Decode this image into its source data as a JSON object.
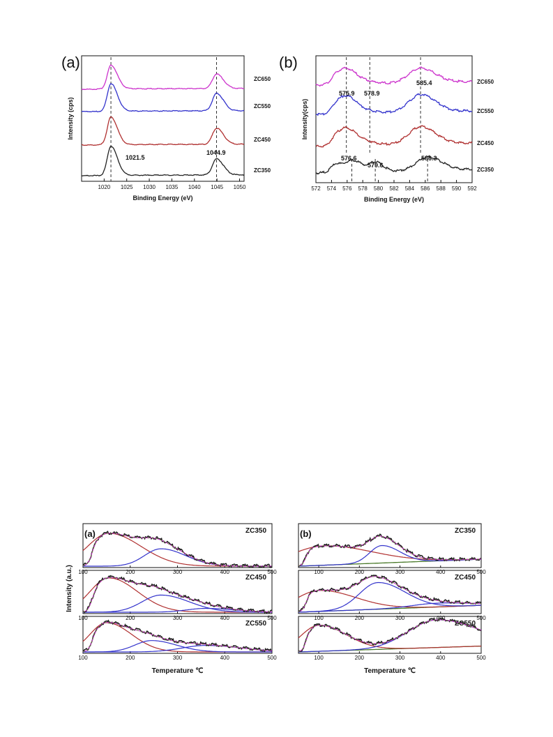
{
  "chart_data": [
    {
      "id": "xps_zn",
      "type": "line",
      "panel_label": "(a)",
      "xlabel": "Binding Energy (eV)",
      "ylabel": "Intensity (cps)",
      "xlim": [
        1015,
        1051
      ],
      "xticks": [
        1020,
        1025,
        1030,
        1035,
        1040,
        1045,
        1050
      ],
      "peak_lines": [
        1021.5,
        1044.9
      ],
      "series": [
        {
          "name": "ZC650",
          "color": "#cc33cc",
          "peaks": [
            {
              "x": 1021.5,
              "h": 0.9,
              "w": 0.8
            },
            {
              "x": 1044.9,
              "h": 0.55,
              "w": 0.9
            }
          ]
        },
        {
          "name": "ZC550",
          "color": "#3333cc",
          "peaks": [
            {
              "x": 1021.5,
              "h": 0.95,
              "w": 0.8
            },
            {
              "x": 1044.9,
              "h": 0.6,
              "w": 0.9
            }
          ]
        },
        {
          "name": "ZC450",
          "color": "#b03030",
          "peaks": [
            {
              "x": 1021.5,
              "h": 0.95,
              "w": 0.8
            },
            {
              "x": 1044.9,
              "h": 0.55,
              "w": 0.9
            }
          ]
        },
        {
          "name": "ZC350",
          "color": "#222222",
          "peaks": [
            {
              "x": 1021.5,
              "h": 1.0,
              "w": 0.8
            },
            {
              "x": 1044.9,
              "h": 0.55,
              "w": 0.9
            }
          ]
        }
      ],
      "annotations": [
        "1021.5",
        "1044.9"
      ]
    },
    {
      "id": "xps_mn",
      "type": "line",
      "panel_label": "(b)",
      "xlabel": "Binding Energy (eV)",
      "ylabel": "Intensity(cps)",
      "xlim": [
        572,
        592
      ],
      "xticks": [
        572,
        574,
        576,
        578,
        580,
        582,
        584,
        586,
        588,
        590,
        592
      ],
      "peak_lines": [
        575.9,
        578.9,
        585.4,
        576.6,
        579.6,
        586.3
      ],
      "series": [
        {
          "name": "ZC650",
          "color": "#cc33cc"
        },
        {
          "name": "ZC550",
          "color": "#3333cc"
        },
        {
          "name": "ZC450",
          "color": "#b03030"
        },
        {
          "name": "ZC350",
          "color": "#222222"
        }
      ],
      "annotations": [
        "575.9",
        "578.9",
        "585.4",
        "576.6",
        "579.6",
        "586.3"
      ]
    },
    {
      "id": "tpd_a",
      "type": "line",
      "panel_label": "(a)",
      "xlabel": "Temperature ℃",
      "ylabel": "Intensity (a.u.)",
      "xlim": [
        100,
        500
      ],
      "xticks": [
        100,
        200,
        300,
        400,
        500
      ],
      "subplots": [
        {
          "name": "ZC350",
          "fits": [
            {
              "c": 155,
              "h": 0.85,
              "w": 45
            },
            {
              "c": 265,
              "h": 0.45,
              "w": 35
            }
          ]
        },
        {
          "name": "ZC450",
          "fits": [
            {
              "c": 155,
              "h": 0.9,
              "w": 40
            },
            {
              "c": 265,
              "h": 0.45,
              "w": 40
            },
            {
              "c": 360,
              "h": 0.1,
              "w": 40
            }
          ]
        },
        {
          "name": "ZC550",
          "fits": [
            {
              "c": 150,
              "h": 0.9,
              "w": 35
            },
            {
              "c": 245,
              "h": 0.35,
              "w": 35
            },
            {
              "c": 360,
              "h": 0.2,
              "w": 50
            }
          ]
        }
      ]
    },
    {
      "id": "tpd_b",
      "type": "line",
      "panel_label": "(b)",
      "xlabel": "Temperature ℃",
      "ylabel": "",
      "xlim": [
        50,
        500
      ],
      "xticks": [
        100,
        200,
        300,
        400,
        500
      ],
      "subplots": [
        {
          "name": "ZC350",
          "fits": [
            {
              "c": 110,
              "h": 0.5,
              "w": 80
            },
            {
              "c": 255,
              "h": 0.45,
              "w": 30
            }
          ]
        },
        {
          "name": "ZC450",
          "fits": [
            {
              "c": 100,
              "h": 0.55,
              "w": 60
            },
            {
              "c": 245,
              "h": 0.7,
              "w": 45
            },
            {
              "c": 390,
              "h": 0.1,
              "w": 60
            }
          ]
        },
        {
          "name": "ZC550",
          "fits": [
            {
              "c": 100,
              "h": 0.8,
              "w": 45
            },
            {
              "c": 390,
              "h": 0.85,
              "w": 70
            }
          ]
        }
      ]
    }
  ]
}
